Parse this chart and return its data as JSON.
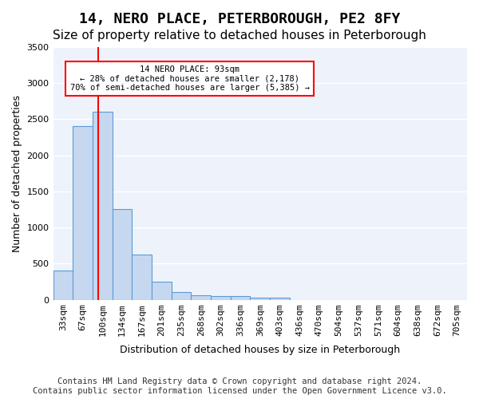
{
  "title": "14, NERO PLACE, PETERBOROUGH, PE2 8FY",
  "subtitle": "Size of property relative to detached houses in Peterborough",
  "xlabel": "Distribution of detached houses by size in Peterborough",
  "ylabel": "Number of detached properties",
  "footer_line1": "Contains HM Land Registry data © Crown copyright and database right 2024.",
  "footer_line2": "Contains public sector information licensed under the Open Government Licence v3.0.",
  "bin_labels": [
    "33sqm",
    "67sqm",
    "100sqm",
    "134sqm",
    "167sqm",
    "201sqm",
    "235sqm",
    "268sqm",
    "302sqm",
    "336sqm",
    "369sqm",
    "403sqm",
    "436sqm",
    "470sqm",
    "504sqm",
    "537sqm",
    "571sqm",
    "604sqm",
    "638sqm",
    "672sqm",
    "705sqm"
  ],
  "bar_heights": [
    400,
    2400,
    2600,
    1250,
    630,
    250,
    100,
    60,
    55,
    50,
    30,
    30,
    0,
    0,
    0,
    0,
    0,
    0,
    0,
    0,
    0
  ],
  "bar_color": "#c5d8f0",
  "bar_edge_color": "#5b9bd5",
  "bar_width": 1.0,
  "ylim": [
    0,
    3500
  ],
  "yticks": [
    0,
    500,
    1000,
    1500,
    2000,
    2500,
    3000,
    3500
  ],
  "red_line_x": 1.77,
  "annotation_text": "14 NERO PLACE: 93sqm\n← 28% of detached houses are smaller (2,178)\n70% of semi-detached houses are larger (5,385) →",
  "background_color": "#eef3fb",
  "grid_color": "#ffffff",
  "title_fontsize": 13,
  "subtitle_fontsize": 11,
  "axis_label_fontsize": 9,
  "tick_fontsize": 8,
  "footer_fontsize": 7.5
}
